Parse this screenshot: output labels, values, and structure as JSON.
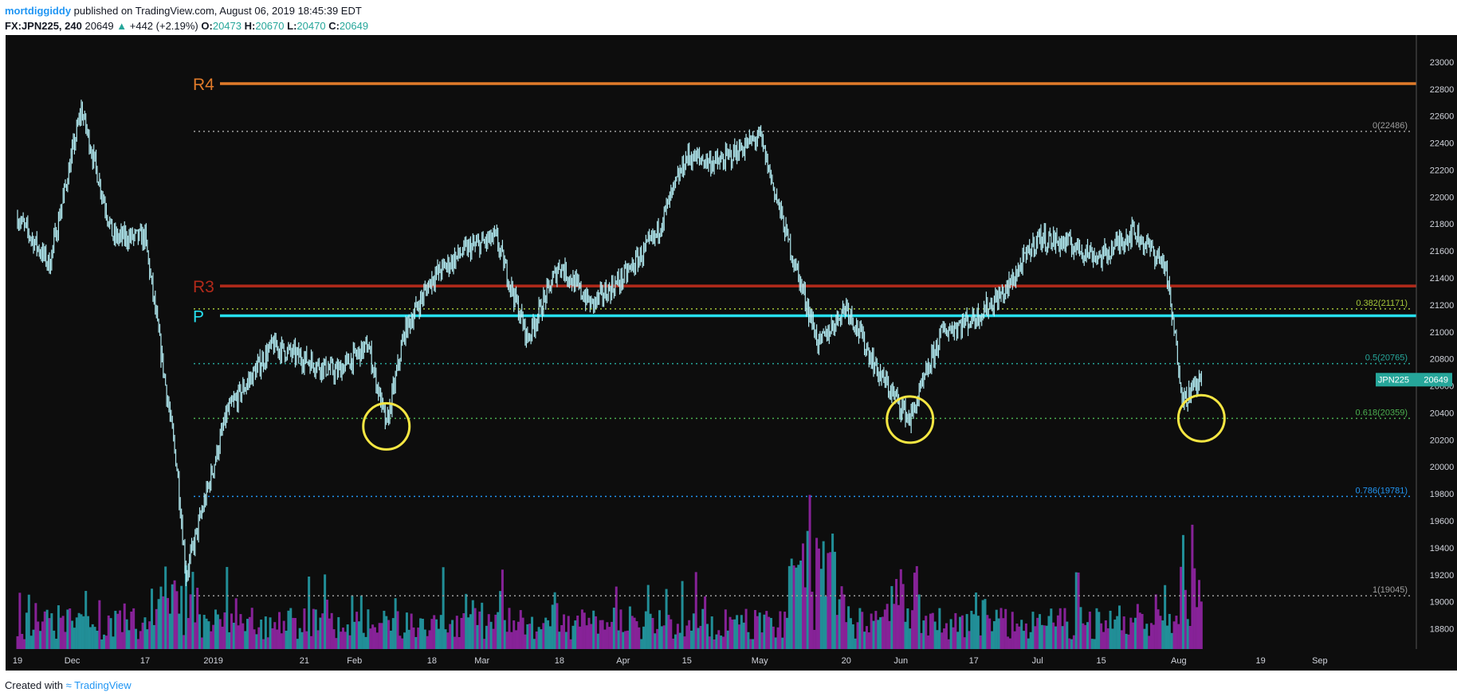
{
  "header": {
    "user": "mortdiggiddy",
    "published": "published on TradingView.com, August 06, 2019 18:45:39 EDT",
    "symbol": "FX:JPN225, 240",
    "last": "20649",
    "change_arrow": "▲",
    "change": "+442 (+2.19%)",
    "open_label": "O:",
    "open": "20473",
    "high_label": "H:",
    "high": "20670",
    "low_label": "L:",
    "low": "20470",
    "close_label": "C:",
    "close": "20649"
  },
  "footer": {
    "created_with": "Created with",
    "brand": "TradingView"
  },
  "price_tag": {
    "symbol": "JPN225",
    "price": "20649"
  },
  "colors": {
    "background": "#0d0d0d",
    "candle": "#b2ebf2",
    "r4": "#e07b2a",
    "r3": "#b22a1a",
    "pivot": "#26e0f0",
    "circle": "#f5e642",
    "volume_a": "#26a6b0",
    "volume_b": "#9c27b0"
  },
  "chart_data": {
    "type": "line",
    "title": "",
    "xlabel": "",
    "ylabel": "",
    "ylim": [
      18650,
      23200
    ],
    "y_ticks": [
      18800,
      19000,
      19200,
      19400,
      19600,
      19800,
      20000,
      20200,
      20400,
      20600,
      20800,
      21000,
      21200,
      21400,
      21600,
      21800,
      22000,
      22200,
      22400,
      22600,
      22800,
      23000
    ],
    "x_ticks": [
      "19",
      "Dec",
      "17",
      "2019",
      "21",
      "Feb",
      "18",
      "Mar",
      "18",
      "Apr",
      "15",
      "May",
      "20",
      "Jun",
      "17",
      "Jul",
      "15",
      "Aug",
      "19",
      "Sep"
    ],
    "series": [
      {
        "x": [
          "Nov 19",
          "Nov 26",
          "Dec 3",
          "Dec 10",
          "Dec 17",
          "Dec 24",
          "Dec 26",
          "Jan 4",
          "Jan 14",
          "Jan 21",
          "Jan 28",
          "Feb 4",
          "Feb 8",
          "Feb 12",
          "Feb 18",
          "Feb 25",
          "Mar 4",
          "Mar 11",
          "Mar 18",
          "Mar 25",
          "Apr 1",
          "Apr 8",
          "Apr 15",
          "Apr 22",
          "May 1",
          "May 7",
          "May 14",
          "May 20",
          "May 27",
          "Jun 3",
          "Jun 10",
          "Jun 17",
          "Jun 24",
          "Jul 1",
          "Jul 8",
          "Jul 15",
          "Jul 22",
          "Jul 29",
          "Aug 2",
          "Aug 6"
        ],
        "values": [
          21850,
          21500,
          22650,
          21700,
          21700,
          20000,
          19200,
          20400,
          20900,
          20800,
          20700,
          20900,
          20300,
          21000,
          21400,
          21600,
          21700,
          20950,
          21500,
          21200,
          21400,
          21700,
          22300,
          22250,
          22450,
          21700,
          20900,
          21200,
          20700,
          20350,
          21000,
          21100,
          21300,
          21700,
          21650,
          21550,
          21750,
          21500,
          20500,
          20649
        ]
      }
    ],
    "levels": [
      {
        "label": "R4",
        "value": 22840
      },
      {
        "label": "R3",
        "value": 21340
      },
      {
        "label": "P",
        "value": 21120
      }
    ],
    "fib_levels": [
      {
        "label": "0(22486)",
        "value": 22486
      },
      {
        "label": "0.382(21171)",
        "value": 21171
      },
      {
        "label": "0.5(20765)",
        "value": 20765
      },
      {
        "label": "0.618(20359)",
        "value": 20359
      },
      {
        "label": "0.786(19781)",
        "value": 19781
      },
      {
        "label": "1(19045)",
        "value": 19045
      }
    ],
    "highlights": [
      {
        "x": "Feb 8",
        "value": 20300
      },
      {
        "x": "Jun 3",
        "value": 20350
      },
      {
        "x": "Aug 6",
        "value": 20360
      }
    ],
    "volume": "shown",
    "grid": false
  }
}
